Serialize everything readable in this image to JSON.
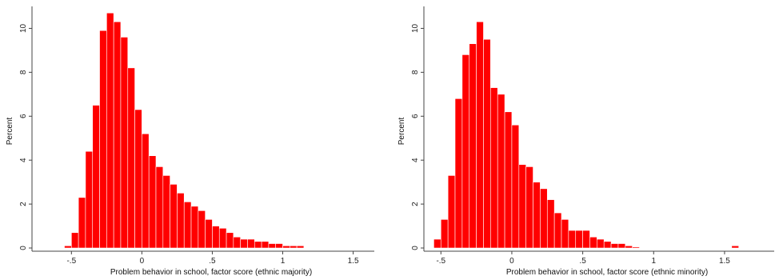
{
  "chart_data": [
    {
      "type": "bar",
      "ylabel": "Percent",
      "xlabel": "Problem behavior in school, factor score (ethnic majority)",
      "xlim": [
        -0.78,
        1.65
      ],
      "ylim": [
        0,
        11
      ],
      "xticks": [
        -0.5,
        0,
        0.5,
        1,
        1.5
      ],
      "xtick_labels": [
        "-.5",
        "0",
        ".5",
        "1",
        "1.5"
      ],
      "yticks": [
        0,
        2,
        4,
        6,
        8,
        10
      ],
      "bin_width": 0.05,
      "x": [
        -0.55,
        -0.5,
        -0.45,
        -0.4,
        -0.35,
        -0.3,
        -0.25,
        -0.2,
        -0.15,
        -0.1,
        -0.05,
        0.0,
        0.05,
        0.1,
        0.15,
        0.2,
        0.25,
        0.3,
        0.35,
        0.4,
        0.45,
        0.5,
        0.55,
        0.6,
        0.65,
        0.7,
        0.75,
        0.8,
        0.85,
        0.9,
        0.95,
        1.0,
        1.05,
        1.1
      ],
      "values": [
        0.1,
        0.7,
        2.3,
        4.4,
        6.5,
        9.9,
        10.7,
        10.3,
        9.6,
        8.2,
        6.3,
        5.2,
        4.2,
        3.7,
        3.3,
        2.9,
        2.5,
        2.1,
        1.9,
        1.7,
        1.3,
        1.0,
        0.9,
        0.7,
        0.5,
        0.4,
        0.4,
        0.3,
        0.3,
        0.2,
        0.2,
        0.1,
        0.1,
        0.1
      ]
    },
    {
      "type": "bar",
      "ylabel": "Percent",
      "xlabel": "Problem behavior in school, factor score (ethnic minority)",
      "xlim": [
        -0.62,
        1.85
      ],
      "ylim": [
        0,
        11
      ],
      "xticks": [
        -0.5,
        0,
        0.5,
        1,
        1.5
      ],
      "xtick_labels": [
        "-.5",
        "0",
        ".5",
        "1",
        "1.5"
      ],
      "yticks": [
        0,
        2,
        4,
        6,
        8,
        10
      ],
      "bin_width": 0.05,
      "x": [
        -0.55,
        -0.5,
        -0.45,
        -0.4,
        -0.35,
        -0.3,
        -0.25,
        -0.2,
        -0.15,
        -0.1,
        -0.05,
        0.0,
        0.05,
        0.1,
        0.15,
        0.2,
        0.25,
        0.3,
        0.35,
        0.4,
        0.45,
        0.5,
        0.55,
        0.6,
        0.65,
        0.7,
        0.75,
        0.8,
        0.85,
        0.9,
        0.95,
        1.0,
        1.05,
        1.1,
        1.15,
        1.2,
        1.25,
        1.3,
        1.35,
        1.4,
        1.45,
        1.5,
        1.55
      ],
      "values": [
        0.4,
        1.3,
        3.3,
        6.8,
        8.8,
        9.3,
        10.3,
        9.5,
        7.3,
        7.0,
        6.2,
        5.6,
        3.8,
        3.7,
        3.0,
        2.7,
        2.2,
        1.6,
        1.3,
        0.8,
        0.8,
        0.8,
        0.5,
        0.4,
        0.3,
        0.2,
        0.2,
        0.1,
        0.05,
        0,
        0,
        0,
        0,
        0,
        0,
        0,
        0,
        0,
        0,
        0,
        0,
        0,
        0.1
      ]
    }
  ]
}
